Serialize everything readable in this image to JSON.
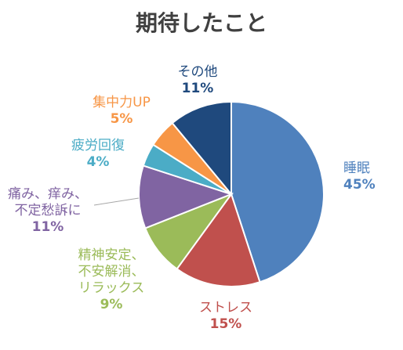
{
  "chart_data": {
    "type": "pie",
    "title": "期待したこと",
    "start_angle_deg": 0,
    "direction": "clockwise",
    "slices": [
      {
        "label": "睡眠",
        "value": 45,
        "value_label": "45%",
        "color": "#4F81BD"
      },
      {
        "label": "ストレス",
        "value": 15,
        "value_label": "15%",
        "color": "#C0504D"
      },
      {
        "label": "精神安定、不安解消、リラックス",
        "label_lines": [
          "精神安定、",
          "不安解消、",
          "リラックス"
        ],
        "value": 9,
        "value_label": "9%",
        "color": "#9BBB59"
      },
      {
        "label": "痛み、痒み、不定愁訴に",
        "label_lines": [
          "痛み、痒み、",
          "不定愁訴に"
        ],
        "value": 11,
        "value_label": "11%",
        "color": "#8064A2"
      },
      {
        "label": "疲労回復",
        "value": 4,
        "value_label": "4%",
        "color": "#4BACC6"
      },
      {
        "label": "集中力UP",
        "value": 5,
        "value_label": "5%",
        "color": "#F79646"
      },
      {
        "label": "その他",
        "value": 11,
        "value_label": "11%",
        "color": "#1F497D"
      }
    ]
  }
}
